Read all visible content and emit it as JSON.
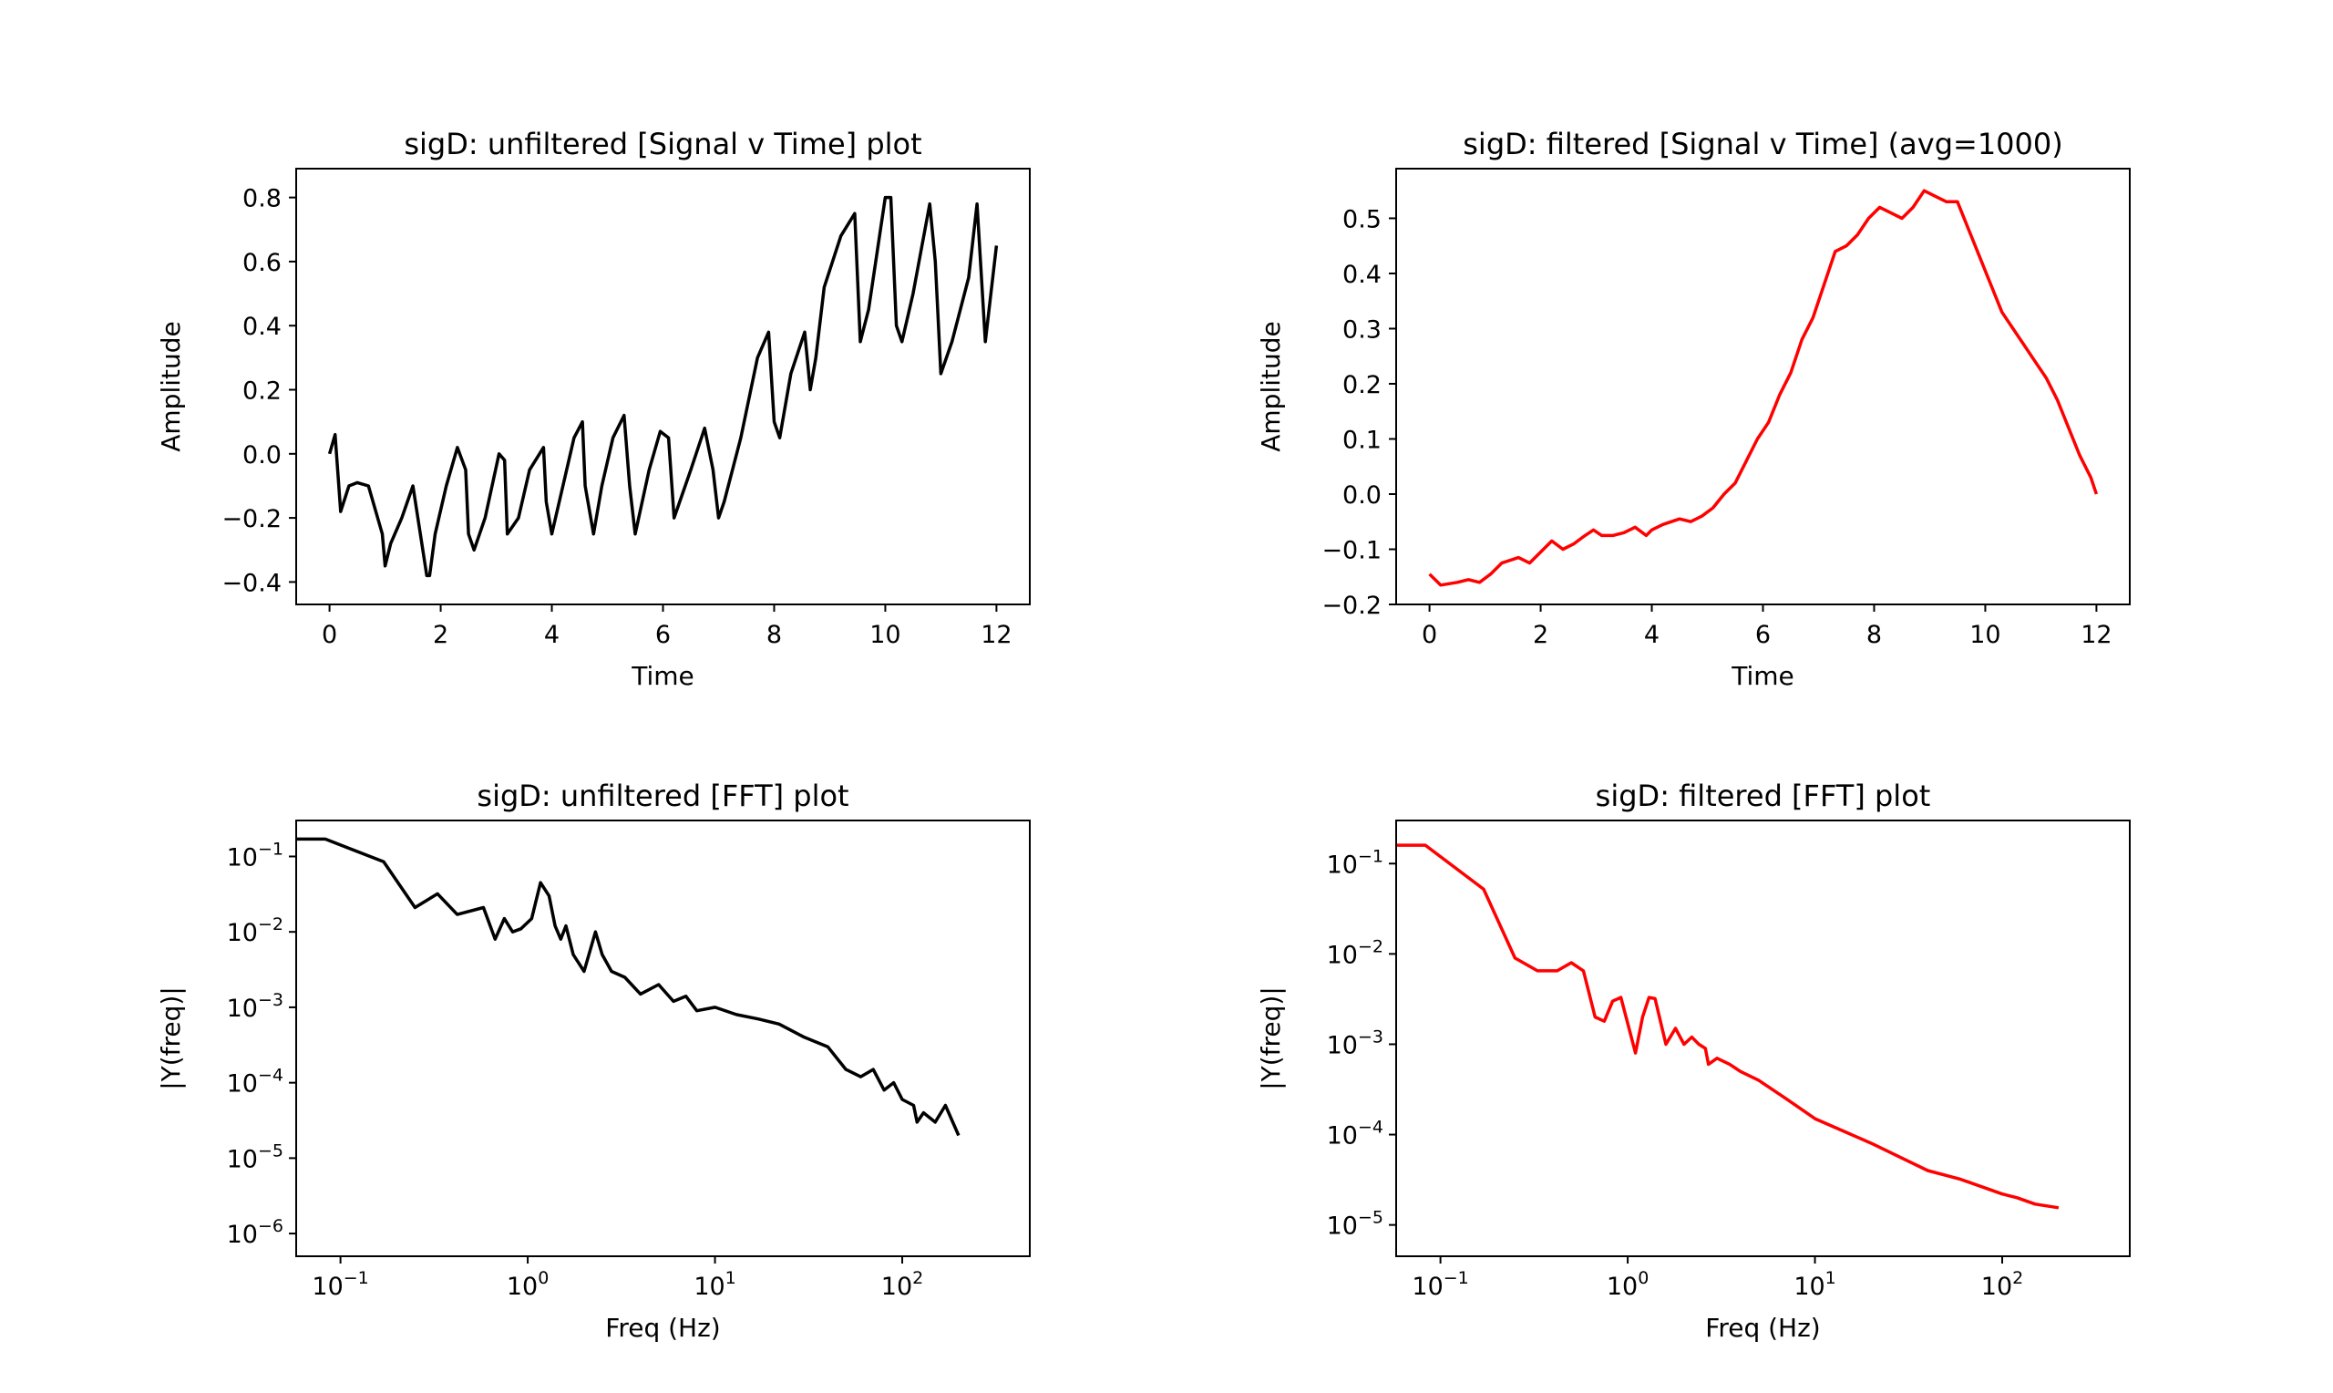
{
  "chart_data": [
    {
      "type": "line",
      "title": "sigD: unfiltered [Signal v Time] plot",
      "xlabel": "Time",
      "ylabel": "Amplitude",
      "xscale": "linear",
      "yscale": "linear",
      "xlim": [
        -0.6,
        12.6
      ],
      "ylim": [
        -0.47,
        0.89
      ],
      "xticks": [
        0,
        2,
        4,
        6,
        8,
        10,
        12
      ],
      "xtick_labels": [
        "0",
        "2",
        "4",
        "6",
        "8",
        "10",
        "12"
      ],
      "yticks": [
        -0.4,
        -0.2,
        0.0,
        0.2,
        0.4,
        0.6,
        0.8
      ],
      "ytick_labels": [
        "−0.4",
        "−0.2",
        "0.0",
        "0.2",
        "0.4",
        "0.6",
        "0.8"
      ],
      "color": "#000000",
      "series": [
        {
          "x": [
            0,
            0.1,
            0.2,
            0.35,
            0.5,
            0.7,
            0.95,
            1.0,
            1.1,
            1.3,
            1.5,
            1.75,
            1.8,
            1.9,
            2.1,
            2.3,
            2.45,
            2.5,
            2.6,
            2.8,
            3.05,
            3.15,
            3.2,
            3.4,
            3.6,
            3.85,
            3.9,
            4.0,
            4.2,
            4.4,
            4.55,
            4.6,
            4.75,
            4.9,
            5.1,
            5.3,
            5.4,
            5.5,
            5.75,
            5.95,
            6.1,
            6.2,
            6.3,
            6.5,
            6.75,
            6.9,
            7.0,
            7.1,
            7.4,
            7.7,
            7.9,
            8.0,
            8.1,
            8.3,
            8.55,
            8.65,
            8.75,
            8.9,
            9.2,
            9.45,
            9.55,
            9.7,
            10.0,
            10.1,
            10.2,
            10.3,
            10.5,
            10.8,
            10.9,
            11.0,
            11.2,
            11.5,
            11.65,
            11.8,
            12.0
          ],
          "y": [
            0.0,
            0.06,
            -0.18,
            -0.1,
            -0.09,
            -0.1,
            -0.25,
            -0.35,
            -0.28,
            -0.2,
            -0.1,
            -0.38,
            -0.38,
            -0.25,
            -0.1,
            0.02,
            -0.05,
            -0.25,
            -0.3,
            -0.2,
            0.0,
            -0.02,
            -0.25,
            -0.2,
            -0.05,
            0.02,
            -0.15,
            -0.25,
            -0.1,
            0.05,
            0.1,
            -0.1,
            -0.25,
            -0.1,
            0.05,
            0.12,
            -0.1,
            -0.25,
            -0.05,
            0.07,
            0.05,
            -0.2,
            -0.15,
            -0.05,
            0.08,
            -0.05,
            -0.2,
            -0.15,
            0.05,
            0.3,
            0.38,
            0.1,
            0.05,
            0.25,
            0.38,
            0.2,
            0.3,
            0.52,
            0.68,
            0.75,
            0.35,
            0.45,
            0.8,
            0.8,
            0.4,
            0.35,
            0.5,
            0.78,
            0.6,
            0.25,
            0.35,
            0.55,
            0.78,
            0.35,
            0.65
          ]
        }
      ]
    },
    {
      "type": "line",
      "title": "sigD: filtered [Signal v Time] (avg=1000)",
      "xlabel": "Time",
      "ylabel": "Amplitude",
      "xscale": "linear",
      "yscale": "linear",
      "xlim": [
        -0.6,
        12.6
      ],
      "ylim": [
        -0.2,
        0.59
      ],
      "xticks": [
        0,
        2,
        4,
        6,
        8,
        10,
        12
      ],
      "xtick_labels": [
        "0",
        "2",
        "4",
        "6",
        "8",
        "10",
        "12"
      ],
      "yticks": [
        -0.2,
        -0.1,
        0.0,
        0.1,
        0.2,
        0.3,
        0.4,
        0.5
      ],
      "ytick_labels": [
        "−0.2",
        "−0.1",
        "0.0",
        "0.1",
        "0.2",
        "0.3",
        "0.4",
        "0.5"
      ],
      "color": "#ff0000",
      "series": [
        {
          "x": [
            0,
            0.2,
            0.5,
            0.7,
            0.9,
            1.1,
            1.3,
            1.6,
            1.8,
            2.0,
            2.2,
            2.4,
            2.6,
            2.8,
            2.95,
            3.1,
            3.3,
            3.5,
            3.7,
            3.9,
            4.0,
            4.2,
            4.5,
            4.7,
            4.9,
            5.1,
            5.3,
            5.5,
            5.7,
            5.9,
            6.1,
            6.3,
            6.5,
            6.7,
            6.9,
            7.1,
            7.3,
            7.5,
            7.7,
            7.9,
            8.1,
            8.3,
            8.5,
            8.7,
            8.9,
            9.1,
            9.3,
            9.5,
            9.7,
            9.9,
            10.1,
            10.3,
            10.5,
            10.7,
            10.9,
            11.1,
            11.3,
            11.5,
            11.7,
            11.9,
            12.0
          ],
          "y": [
            -0.145,
            -0.165,
            -0.16,
            -0.155,
            -0.16,
            -0.145,
            -0.125,
            -0.115,
            -0.125,
            -0.105,
            -0.085,
            -0.1,
            -0.09,
            -0.075,
            -0.065,
            -0.075,
            -0.075,
            -0.07,
            -0.06,
            -0.075,
            -0.065,
            -0.055,
            -0.045,
            -0.05,
            -0.04,
            -0.025,
            0.0,
            0.02,
            0.06,
            0.1,
            0.13,
            0.18,
            0.22,
            0.28,
            0.32,
            0.38,
            0.44,
            0.45,
            0.47,
            0.5,
            0.52,
            0.51,
            0.5,
            0.52,
            0.55,
            0.54,
            0.53,
            0.53,
            0.48,
            0.43,
            0.38,
            0.33,
            0.3,
            0.27,
            0.24,
            0.21,
            0.17,
            0.12,
            0.07,
            0.03,
            0.0
          ]
        }
      ]
    },
    {
      "type": "line",
      "title": "sigD: unfiltered [FFT] plot",
      "xlabel": "Freq (Hz)",
      "ylabel": "|Y(freq)|",
      "xscale": "log",
      "yscale": "log",
      "xlim": [
        0.058,
        480
      ],
      "ylim": [
        5e-07,
        0.3
      ],
      "xticks": [
        0.1,
        1,
        10,
        100
      ],
      "xtick_labels": [
        {
          "b": "10",
          "e": "−1"
        },
        {
          "b": "10",
          "e": "0"
        },
        {
          "b": "10",
          "e": "1"
        },
        {
          "b": "10",
          "e": "2"
        }
      ],
      "yticks": [
        1e-06,
        1e-05,
        0.0001,
        0.001,
        0.01,
        0.1
      ],
      "ytick_labels": [
        {
          "b": "10",
          "e": "−6"
        },
        {
          "b": "10",
          "e": "−5"
        },
        {
          "b": "10",
          "e": "−4"
        },
        {
          "b": "10",
          "e": "−3"
        },
        {
          "b": "10",
          "e": "−2"
        },
        {
          "b": "10",
          "e": "−1"
        }
      ],
      "color": "#000000",
      "series": [
        {
          "x": [
            0.058,
            0.083,
            0.17,
            0.25,
            0.33,
            0.42,
            0.58,
            0.67,
            0.75,
            0.83,
            0.92,
            1.05,
            1.17,
            1.3,
            1.4,
            1.5,
            1.6,
            1.75,
            2.0,
            2.3,
            2.5,
            2.8,
            3.3,
            4,
            5,
            6,
            7,
            8,
            10,
            13,
            17,
            22,
            30,
            40,
            50,
            60,
            70,
            80,
            90,
            100,
            115,
            120,
            130,
            150,
            170,
            200
          ],
          "y": [
            0.17,
            0.17,
            0.085,
            0.021,
            0.032,
            0.017,
            0.021,
            0.008,
            0.015,
            0.01,
            0.011,
            0.015,
            0.045,
            0.03,
            0.012,
            0.008,
            0.012,
            0.005,
            0.003,
            0.01,
            0.005,
            0.003,
            0.0025,
            0.0015,
            0.002,
            0.0012,
            0.0014,
            0.0009,
            0.001,
            0.0008,
            0.0007,
            0.0006,
            0.0004,
            0.0003,
            0.00015,
            0.00012,
            0.00015,
            8e-05,
            0.0001,
            6e-05,
            5e-05,
            3e-05,
            4e-05,
            3e-05,
            5e-05,
            2e-05
          ]
        }
      ]
    },
    {
      "type": "line",
      "title": "sigD: filtered [FFT] plot",
      "xlabel": "Freq (Hz)",
      "ylabel": "|Y(freq)|",
      "xscale": "log",
      "yscale": "log",
      "xlim": [
        0.058,
        480
      ],
      "ylim": [
        4.5e-06,
        0.3
      ],
      "xticks": [
        0.1,
        1,
        10,
        100
      ],
      "xtick_labels": [
        {
          "b": "10",
          "e": "−1"
        },
        {
          "b": "10",
          "e": "0"
        },
        {
          "b": "10",
          "e": "1"
        },
        {
          "b": "10",
          "e": "2"
        }
      ],
      "yticks": [
        1e-05,
        0.0001,
        0.001,
        0.01,
        0.1
      ],
      "ytick_labels": [
        {
          "b": "10",
          "e": "−5"
        },
        {
          "b": "10",
          "e": "−4"
        },
        {
          "b": "10",
          "e": "−3"
        },
        {
          "b": "10",
          "e": "−2"
        },
        {
          "b": "10",
          "e": "−1"
        }
      ],
      "color": "#ff0000",
      "series": [
        {
          "x": [
            0.058,
            0.083,
            0.17,
            0.25,
            0.33,
            0.42,
            0.5,
            0.58,
            0.67,
            0.75,
            0.83,
            0.92,
            1.0,
            1.1,
            1.2,
            1.3,
            1.4,
            1.6,
            1.8,
            2.0,
            2.2,
            2.4,
            2.6,
            2.7,
            3.0,
            3.5,
            4,
            5,
            7,
            10,
            20,
            40,
            60,
            100,
            120,
            150,
            200
          ],
          "y": [
            0.16,
            0.16,
            0.052,
            0.009,
            0.0065,
            0.0065,
            0.008,
            0.0065,
            0.002,
            0.0018,
            0.003,
            0.0033,
            0.0017,
            0.0008,
            0.002,
            0.0033,
            0.0032,
            0.001,
            0.0015,
            0.001,
            0.0012,
            0.001,
            0.0009,
            0.0006,
            0.0007,
            0.0006,
            0.0005,
            0.0004,
            0.00025,
            0.00015,
            8e-05,
            4e-05,
            3.2e-05,
            2.2e-05,
            2e-05,
            1.7e-05,
            1.55e-05
          ]
        }
      ]
    }
  ]
}
